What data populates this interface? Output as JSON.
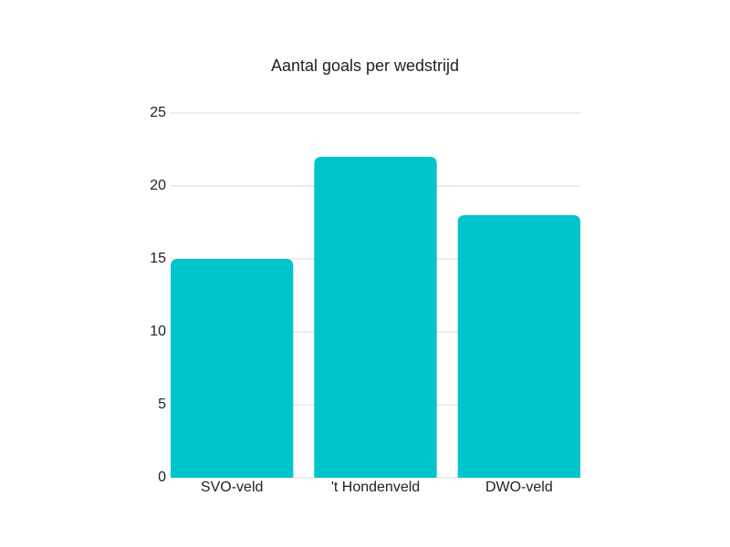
{
  "chart_data": {
    "type": "bar",
    "title": "Aantal goals per wedstrijd",
    "categories": [
      "SVO-veld",
      "'t Hondenveld",
      "DWO-veld"
    ],
    "values": [
      15,
      22,
      18
    ],
    "color": "#00c4cc",
    "ylim": [
      0,
      25
    ],
    "yticks": [
      0,
      5,
      10,
      15,
      20,
      25
    ],
    "grid": true
  }
}
